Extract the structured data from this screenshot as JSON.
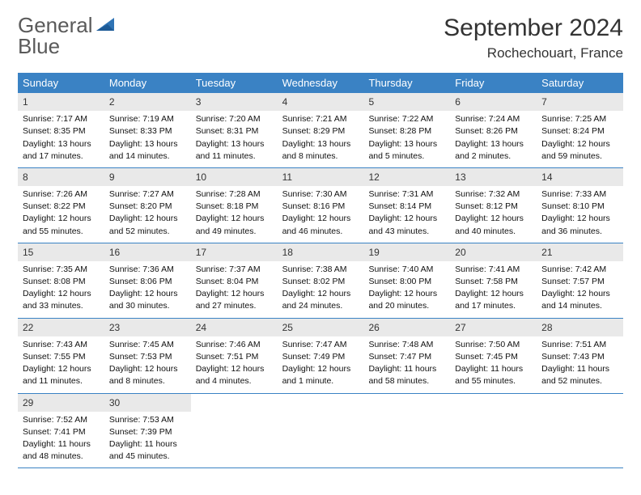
{
  "logo": {
    "word1": "General",
    "word2": "Blue",
    "icon_color": "#2f74b5",
    "text_gray": "#5a5a5a"
  },
  "header": {
    "title": "September 2024",
    "subtitle": "Rochechouart, France"
  },
  "colors": {
    "header_bar": "#3a82c4",
    "daynum_bg": "#e9e9e9",
    "border": "#3a82c4"
  },
  "dow": [
    "Sunday",
    "Monday",
    "Tuesday",
    "Wednesday",
    "Thursday",
    "Friday",
    "Saturday"
  ],
  "weeks": [
    [
      {
        "n": "1",
        "sr": "Sunrise: 7:17 AM",
        "ss": "Sunset: 8:35 PM",
        "d1": "Daylight: 13 hours",
        "d2": "and 17 minutes."
      },
      {
        "n": "2",
        "sr": "Sunrise: 7:19 AM",
        "ss": "Sunset: 8:33 PM",
        "d1": "Daylight: 13 hours",
        "d2": "and 14 minutes."
      },
      {
        "n": "3",
        "sr": "Sunrise: 7:20 AM",
        "ss": "Sunset: 8:31 PM",
        "d1": "Daylight: 13 hours",
        "d2": "and 11 minutes."
      },
      {
        "n": "4",
        "sr": "Sunrise: 7:21 AM",
        "ss": "Sunset: 8:29 PM",
        "d1": "Daylight: 13 hours",
        "d2": "and 8 minutes."
      },
      {
        "n": "5",
        "sr": "Sunrise: 7:22 AM",
        "ss": "Sunset: 8:28 PM",
        "d1": "Daylight: 13 hours",
        "d2": "and 5 minutes."
      },
      {
        "n": "6",
        "sr": "Sunrise: 7:24 AM",
        "ss": "Sunset: 8:26 PM",
        "d1": "Daylight: 13 hours",
        "d2": "and 2 minutes."
      },
      {
        "n": "7",
        "sr": "Sunrise: 7:25 AM",
        "ss": "Sunset: 8:24 PM",
        "d1": "Daylight: 12 hours",
        "d2": "and 59 minutes."
      }
    ],
    [
      {
        "n": "8",
        "sr": "Sunrise: 7:26 AM",
        "ss": "Sunset: 8:22 PM",
        "d1": "Daylight: 12 hours",
        "d2": "and 55 minutes."
      },
      {
        "n": "9",
        "sr": "Sunrise: 7:27 AM",
        "ss": "Sunset: 8:20 PM",
        "d1": "Daylight: 12 hours",
        "d2": "and 52 minutes."
      },
      {
        "n": "10",
        "sr": "Sunrise: 7:28 AM",
        "ss": "Sunset: 8:18 PM",
        "d1": "Daylight: 12 hours",
        "d2": "and 49 minutes."
      },
      {
        "n": "11",
        "sr": "Sunrise: 7:30 AM",
        "ss": "Sunset: 8:16 PM",
        "d1": "Daylight: 12 hours",
        "d2": "and 46 minutes."
      },
      {
        "n": "12",
        "sr": "Sunrise: 7:31 AM",
        "ss": "Sunset: 8:14 PM",
        "d1": "Daylight: 12 hours",
        "d2": "and 43 minutes."
      },
      {
        "n": "13",
        "sr": "Sunrise: 7:32 AM",
        "ss": "Sunset: 8:12 PM",
        "d1": "Daylight: 12 hours",
        "d2": "and 40 minutes."
      },
      {
        "n": "14",
        "sr": "Sunrise: 7:33 AM",
        "ss": "Sunset: 8:10 PM",
        "d1": "Daylight: 12 hours",
        "d2": "and 36 minutes."
      }
    ],
    [
      {
        "n": "15",
        "sr": "Sunrise: 7:35 AM",
        "ss": "Sunset: 8:08 PM",
        "d1": "Daylight: 12 hours",
        "d2": "and 33 minutes."
      },
      {
        "n": "16",
        "sr": "Sunrise: 7:36 AM",
        "ss": "Sunset: 8:06 PM",
        "d1": "Daylight: 12 hours",
        "d2": "and 30 minutes."
      },
      {
        "n": "17",
        "sr": "Sunrise: 7:37 AM",
        "ss": "Sunset: 8:04 PM",
        "d1": "Daylight: 12 hours",
        "d2": "and 27 minutes."
      },
      {
        "n": "18",
        "sr": "Sunrise: 7:38 AM",
        "ss": "Sunset: 8:02 PM",
        "d1": "Daylight: 12 hours",
        "d2": "and 24 minutes."
      },
      {
        "n": "19",
        "sr": "Sunrise: 7:40 AM",
        "ss": "Sunset: 8:00 PM",
        "d1": "Daylight: 12 hours",
        "d2": "and 20 minutes."
      },
      {
        "n": "20",
        "sr": "Sunrise: 7:41 AM",
        "ss": "Sunset: 7:58 PM",
        "d1": "Daylight: 12 hours",
        "d2": "and 17 minutes."
      },
      {
        "n": "21",
        "sr": "Sunrise: 7:42 AM",
        "ss": "Sunset: 7:57 PM",
        "d1": "Daylight: 12 hours",
        "d2": "and 14 minutes."
      }
    ],
    [
      {
        "n": "22",
        "sr": "Sunrise: 7:43 AM",
        "ss": "Sunset: 7:55 PM",
        "d1": "Daylight: 12 hours",
        "d2": "and 11 minutes."
      },
      {
        "n": "23",
        "sr": "Sunrise: 7:45 AM",
        "ss": "Sunset: 7:53 PM",
        "d1": "Daylight: 12 hours",
        "d2": "and 8 minutes."
      },
      {
        "n": "24",
        "sr": "Sunrise: 7:46 AM",
        "ss": "Sunset: 7:51 PM",
        "d1": "Daylight: 12 hours",
        "d2": "and 4 minutes."
      },
      {
        "n": "25",
        "sr": "Sunrise: 7:47 AM",
        "ss": "Sunset: 7:49 PM",
        "d1": "Daylight: 12 hours",
        "d2": "and 1 minute."
      },
      {
        "n": "26",
        "sr": "Sunrise: 7:48 AM",
        "ss": "Sunset: 7:47 PM",
        "d1": "Daylight: 11 hours",
        "d2": "and 58 minutes."
      },
      {
        "n": "27",
        "sr": "Sunrise: 7:50 AM",
        "ss": "Sunset: 7:45 PM",
        "d1": "Daylight: 11 hours",
        "d2": "and 55 minutes."
      },
      {
        "n": "28",
        "sr": "Sunrise: 7:51 AM",
        "ss": "Sunset: 7:43 PM",
        "d1": "Daylight: 11 hours",
        "d2": "and 52 minutes."
      }
    ],
    [
      {
        "n": "29",
        "sr": "Sunrise: 7:52 AM",
        "ss": "Sunset: 7:41 PM",
        "d1": "Daylight: 11 hours",
        "d2": "and 48 minutes."
      },
      {
        "n": "30",
        "sr": "Sunrise: 7:53 AM",
        "ss": "Sunset: 7:39 PM",
        "d1": "Daylight: 11 hours",
        "d2": "and 45 minutes."
      },
      null,
      null,
      null,
      null,
      null
    ]
  ]
}
